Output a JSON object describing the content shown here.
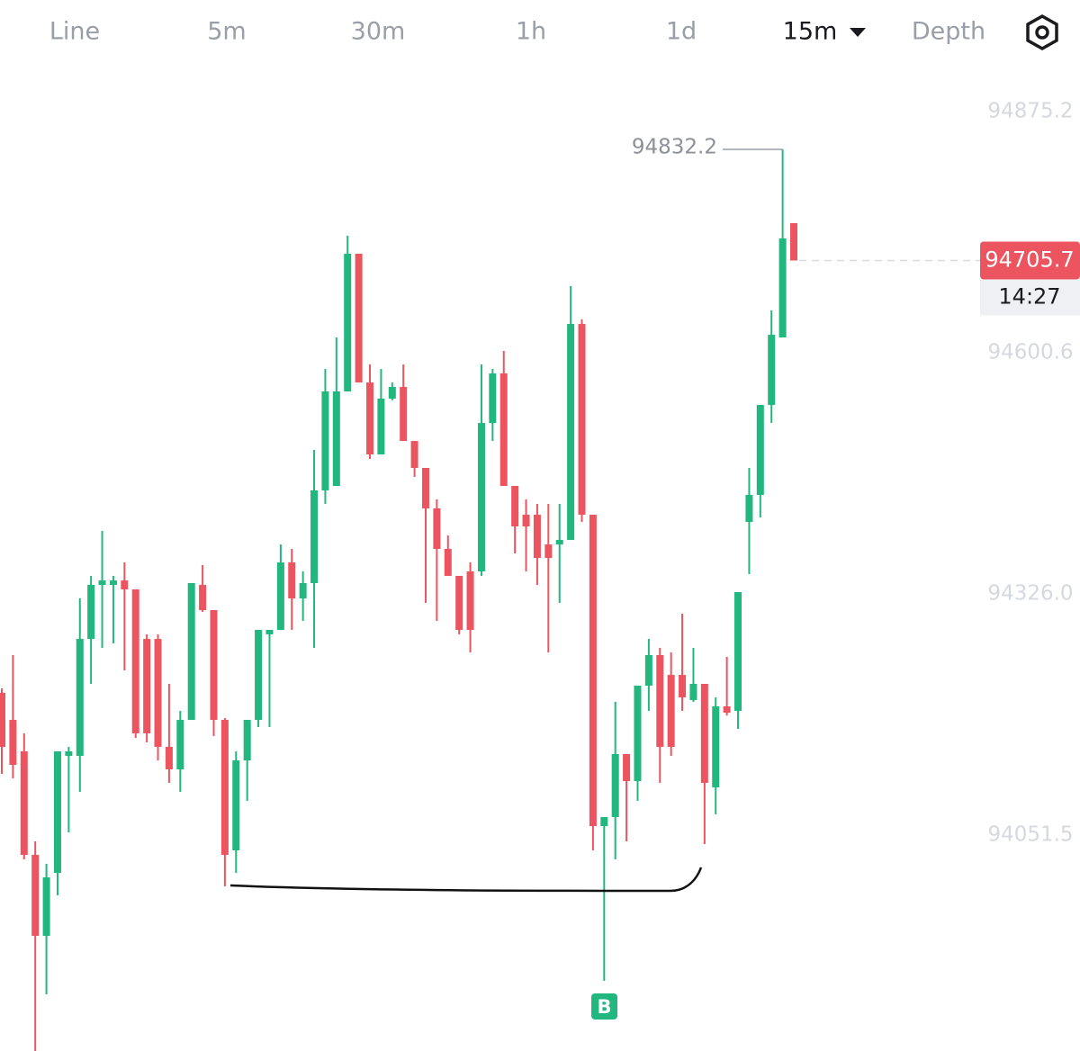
{
  "toolbar": {
    "tabs": [
      "Line",
      "5m",
      "30m",
      "1h",
      "1d",
      "15m",
      "Depth"
    ],
    "active": "15m"
  },
  "chart_data": {
    "type": "candlestick",
    "up_color": "#21b77f",
    "down_color": "#ec5560",
    "ylim": [
      93805.6,
      95002.3
    ],
    "yticks": [
      94051.5,
      {
        "value": 94326,
        "label": "94326.0"
      },
      94600.6,
      94875.2
    ],
    "grid": false,
    "open": [
      94213.4,
      94182.6,
      94146.8,
      94028.9,
      93936.7,
      94008.4,
      94141.6,
      94141.6,
      94274.8,
      94336.3,
      94336.3,
      94341.4,
      94331.2,
      94274.8,
      94274.8,
      94151.9,
      94126.3,
      94182.6,
      94336.3,
      94307.6,
      94182.6,
      94034.1,
      94136.5,
      94182.6,
      94280.0,
      94285.1,
      94361.9,
      94320.9,
      94338.4,
      94443.9,
      94449.0,
      94556.6,
      94713.4,
      94566.8,
      94484.9,
      94548.4,
      94561.7,
      94500.2,
      94469.5,
      94423.4,
      94377.3,
      94346.6,
      94351.7,
      94351.7,
      94520.7,
      94577.1,
      94449.0,
      94416.2,
      94416.2,
      94382.4,
      94382.4,
      94387.5,
      94633.4,
      94416.2,
      94061.7,
      94072.0,
      94143.7,
      94112.9,
      94221.6,
      94256.4,
      94233.8,
      94233.8,
      94205.2,
      94223.6,
      94105.8,
      94198.0,
      94192.9,
      94408.0,
      94438.8,
      94541.2,
      94618.1,
      94748.2
    ],
    "high": [
      94218.5,
      94256.4,
      94167.3,
      94044.3,
      94018.7,
      94146.8,
      94151.9,
      94320.9,
      94346.6,
      94397.8,
      94346.6,
      94361.9,
      94331.2,
      94280.0,
      94280.0,
      94223.6,
      94192.9,
      94338.4,
      94358.9,
      94307.6,
      94184.7,
      94146.8,
      94182.6,
      94285.1,
      94285.1,
      94382.4,
      94377.3,
      94351.7,
      94490.0,
      94582.2,
      94618.1,
      94733.9,
      94713.4,
      94587.3,
      94582.2,
      94566.8,
      94587.3,
      94500.2,
      94469.5,
      94433.6,
      94392.7,
      94346.6,
      94361.9,
      94587.3,
      94582.2,
      94602.7,
      94449.0,
      94433.6,
      94428.5,
      94428.5,
      94428.5,
      94676.5,
      94638.6,
      94416.2,
      94072.0,
      94203.1,
      94143.7,
      94221.6,
      94274.8,
      94264.6,
      94259.5,
      94303.5,
      94264.6,
      94223.6,
      94208.2,
      94254.3,
      94328.1,
      94469.5,
      94541.2,
      94648.8,
      94832.2,
      94748.2
    ],
    "low": [
      94121.1,
      94116.0,
      94023.8,
      93805.6,
      93870.1,
      93982.8,
      94054.5,
      94100.7,
      94223.6,
      94264.6,
      94269.7,
      94239.0,
      94162.1,
      94157.0,
      94136.5,
      94110.9,
      94100.7,
      94182.6,
      94305.6,
      94164.2,
      93993.1,
      94008.4,
      94090.4,
      94174.4,
      94174.4,
      94285.1,
      94285.1,
      94295.3,
      94264.6,
      94428.5,
      94449.0,
      94556.6,
      94566.8,
      94479.8,
      94484.9,
      94546.4,
      94500.2,
      94459.3,
      94315.8,
      94295.3,
      94346.6,
      94280.0,
      94259.5,
      94346.6,
      94500.2,
      94449.0,
      94372.2,
      94351.7,
      94336.3,
      94259.5,
      94315.8,
      94387.5,
      94408.0,
      94034.1,
      93885.5,
      94023.8,
      94044.3,
      94090.4,
      94192.9,
      94110.9,
      94141.6,
      94192.9,
      94203.1,
      94041.2,
      94075.0,
      94187.7,
      94172.4,
      94348.6,
      94413.2,
      94520.7,
      94618.1,
      94705.7
    ],
    "close": [
      94151.9,
      94131.4,
      94028.9,
      93936.7,
      94003.3,
      94146.8,
      94146.8,
      94274.8,
      94336.3,
      94341.4,
      94341.4,
      94331.2,
      94167.3,
      94167.3,
      94151.9,
      94126.3,
      94182.6,
      94338.4,
      94307.6,
      94182.6,
      94028.9,
      94136.5,
      94182.6,
      94285.1,
      94285.1,
      94361.9,
      94320.9,
      94338.4,
      94443.9,
      94556.6,
      94556.6,
      94713.4,
      94566.8,
      94484.9,
      94548.4,
      94561.7,
      94500.2,
      94469.5,
      94423.4,
      94377.3,
      94346.6,
      94285.1,
      94285.1,
      94520.7,
      94577.1,
      94449.0,
      94402.9,
      94402.9,
      94367.0,
      94367.0,
      94387.5,
      94633.4,
      94416.2,
      94061.7,
      94072.0,
      94143.7,
      94112.9,
      94221.6,
      94256.4,
      94151.9,
      94151.9,
      94208.2,
      94223.6,
      94110.9,
      94198.0,
      94190.8,
      94328.1,
      94438.8,
      94541.2,
      94621.1,
      94730.8,
      94705.7
    ],
    "high_annotation": 94832.2,
    "last_price": 94705.7,
    "countdown": "14:27",
    "buy_marker": "B"
  }
}
